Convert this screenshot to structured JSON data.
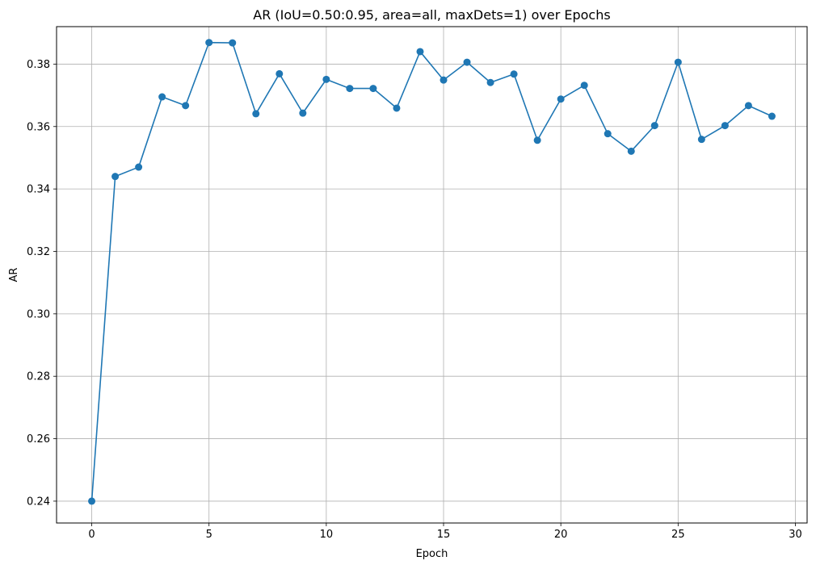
{
  "chart_data": {
    "type": "line",
    "title": "AR (IoU=0.50:0.95, area=all, maxDets=1) over Epochs",
    "xlabel": "Epoch",
    "ylabel": "AR",
    "xlim": [
      -1.5,
      30.5
    ],
    "ylim": [
      0.233,
      0.392
    ],
    "xticks": [
      0,
      5,
      10,
      15,
      20,
      25,
      30
    ],
    "xtick_labels": [
      "0",
      "5",
      "10",
      "15",
      "20",
      "25",
      "30"
    ],
    "yticks": [
      0.24,
      0.26,
      0.28,
      0.3,
      0.32,
      0.34,
      0.36,
      0.38
    ],
    "ytick_labels": [
      "0.24",
      "0.26",
      "0.28",
      "0.30",
      "0.32",
      "0.34",
      "0.36",
      "0.38"
    ],
    "grid": true,
    "marker": "circle",
    "color": "#1f77b4",
    "grid_color": "#b0b0b0",
    "series": [
      {
        "x": [
          0,
          1,
          2,
          3,
          4,
          5,
          6,
          7,
          8,
          9,
          10,
          11,
          12,
          13,
          14,
          15,
          16,
          17,
          18,
          19,
          20,
          21,
          22,
          23,
          24,
          25,
          26,
          27,
          28,
          29
        ],
        "values": [
          0.24,
          0.344,
          0.347,
          0.3695,
          0.3667,
          0.3869,
          0.3868,
          0.3641,
          0.3769,
          0.3643,
          0.3751,
          0.3722,
          0.3722,
          0.3659,
          0.384,
          0.3749,
          0.3806,
          0.3741,
          0.3768,
          0.3556,
          0.3688,
          0.3732,
          0.3577,
          0.3521,
          0.3603,
          0.3806,
          0.3559,
          0.3603,
          0.3667,
          0.3633
        ]
      }
    ]
  }
}
